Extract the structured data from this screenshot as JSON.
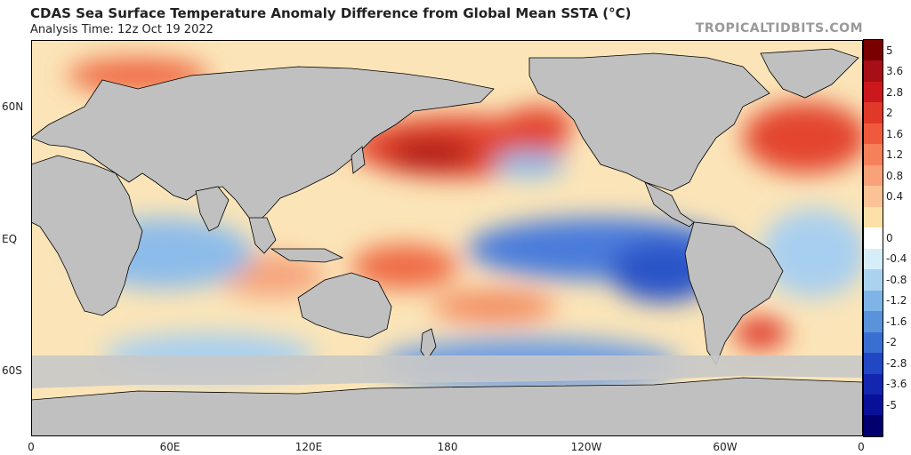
{
  "header": {
    "title": "CDAS Sea Surface Temperature Anomaly Difference from Global Mean SSTA (°C)",
    "subtitle": "Analysis Time: 12z Oct 19 2022",
    "watermark": "TROPICALTIDBITS.COM"
  },
  "map": {
    "lat_labels": [
      "60N",
      "EQ",
      "60S"
    ],
    "lon_labels": [
      "0",
      "60E",
      "120E",
      "180",
      "120W",
      "60W",
      "0"
    ],
    "colors": {
      "land": "#c0c0c0",
      "sea_ice": "#c0c0c0",
      "border": "#000000"
    }
  },
  "colorbar": {
    "labels": [
      "5",
      "3.6",
      "2.8",
      "2",
      "1.6",
      "1.2",
      "0.8",
      "0.4",
      "0",
      "-0.4",
      "-0.8",
      "-1.2",
      "-1.6",
      "-2",
      "-2.8",
      "-3.6",
      "-5"
    ],
    "colors": [
      "#7a0000",
      "#a50f15",
      "#cb181d",
      "#e0392a",
      "#ef5a3c",
      "#f6805a",
      "#f9a27a",
      "#fbc295",
      "#fde0a8",
      "#ffffff",
      "#d6eefa",
      "#aad3f0",
      "#7fb4e6",
      "#5a93dc",
      "#3a6fd2",
      "#2147c4",
      "#1226b0",
      "#08109a",
      "#02006e"
    ]
  }
}
